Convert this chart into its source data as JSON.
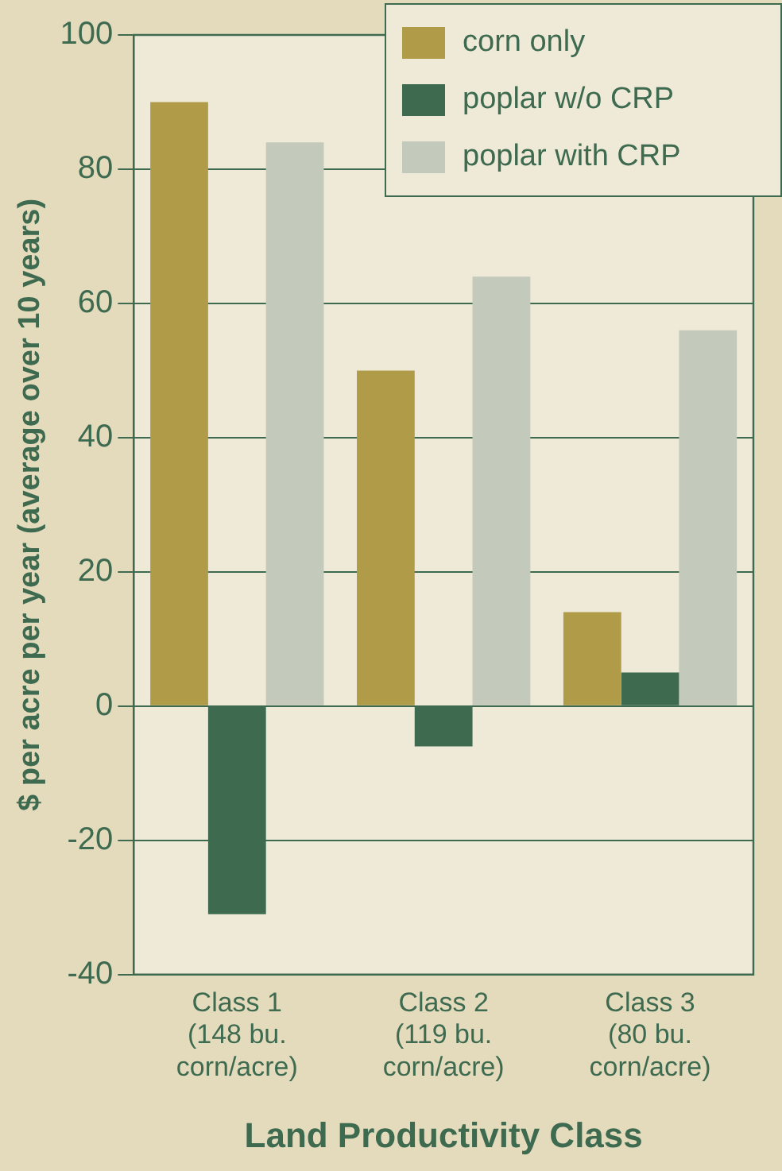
{
  "chart_data": {
    "type": "bar",
    "xlabel": "Land Productivity Class",
    "ylabel": "$ per acre per year (average over 10 years)",
    "categories": [
      "Class 1\n(148 bu.\ncorn/acre)",
      "Class 2\n(119 bu.\ncorn/acre)",
      "Class 3\n(80 bu.\ncorn/acre)"
    ],
    "series": [
      {
        "name": "corn only",
        "color": "#b09c48",
        "values": [
          90,
          50,
          14
        ]
      },
      {
        "name": "poplar w/o CRP",
        "color": "#3e6a50",
        "values": [
          -31,
          -6,
          5
        ]
      },
      {
        "name": "poplar with CRP",
        "color": "#c3c9bb",
        "values": [
          84,
          64,
          56
        ]
      }
    ],
    "ylim": [
      -40,
      100
    ],
    "yticks": [
      -40,
      -20,
      0,
      20,
      40,
      60,
      80,
      100
    ],
    "grid": "y",
    "legend": "top right"
  }
}
